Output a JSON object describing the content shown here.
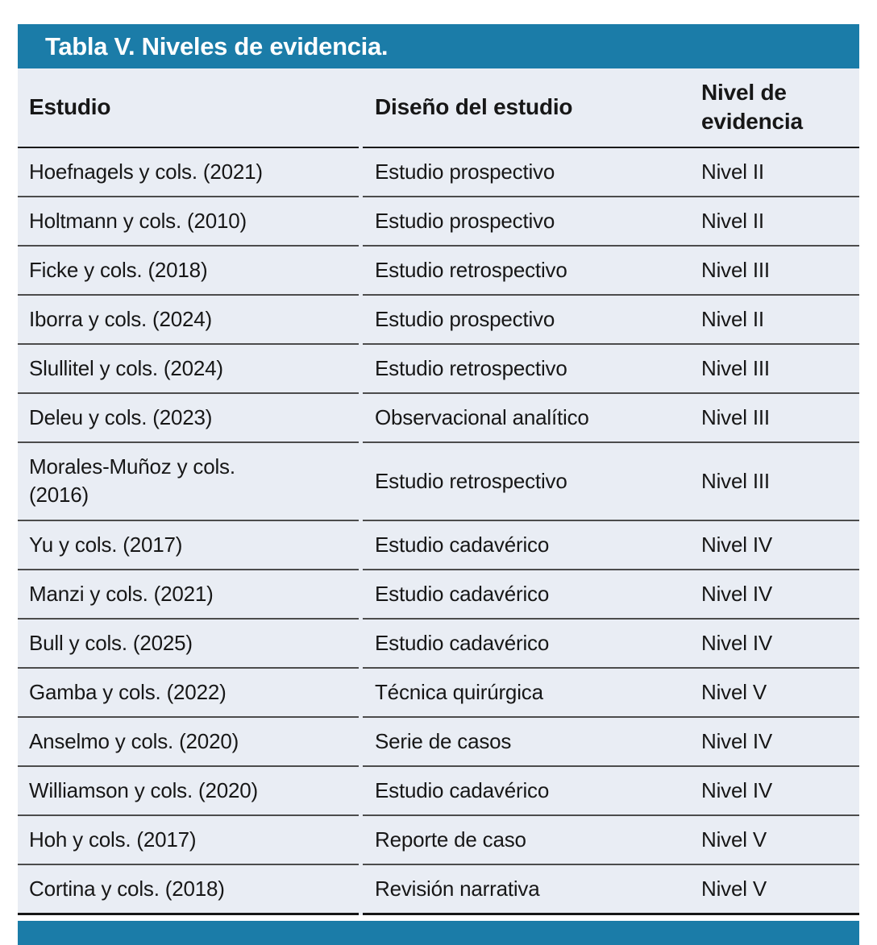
{
  "colors": {
    "accent_teal": "#1b7ca8",
    "table_background": "#e9edf4",
    "text": "#171717",
    "divider": "#4c4c4c"
  },
  "title_bar": {
    "title": "Tabla V. Niveles de evidencia."
  },
  "table": {
    "columns": [
      "Estudio",
      "Diseño del estudio",
      "Nivel de evidencia"
    ],
    "rows": [
      {
        "estudio": "Hoefnagels y cols. (2021)",
        "diseno": "Estudio prospectivo",
        "nivel": "Nivel II"
      },
      {
        "estudio": "Holtmann y cols. (2010)",
        "diseno": "Estudio prospectivo",
        "nivel": "Nivel II"
      },
      {
        "estudio": "Ficke y cols. (2018)",
        "diseno": "Estudio retrospectivo",
        "nivel": "Nivel III"
      },
      {
        "estudio": "Iborra y cols. (2024)",
        "diseno": "Estudio prospectivo",
        "nivel": "Nivel II"
      },
      {
        "estudio": "Slullitel y cols. (2024)",
        "diseno": "Estudio retrospectivo",
        "nivel": "Nivel III"
      },
      {
        "estudio": "Deleu y cols. (2023)",
        "diseno": "Observacional analítico",
        "nivel": "Nivel III"
      },
      {
        "estudio": "Morales-Muñoz y cols.\n(2016)",
        "diseno": "Estudio retrospectivo",
        "nivel": "Nivel III"
      },
      {
        "estudio": "Yu y cols. (2017)",
        "diseno": "Estudio cadavérico",
        "nivel": "Nivel IV"
      },
      {
        "estudio": "Manzi y cols. (2021)",
        "diseno": "Estudio cadavérico",
        "nivel": "Nivel IV"
      },
      {
        "estudio": "Bull y cols. (2025)",
        "diseno": "Estudio cadavérico",
        "nivel": "Nivel IV"
      },
      {
        "estudio": "Gamba y cols. (2022)",
        "diseno": "Técnica quirúrgica",
        "nivel": "Nivel V"
      },
      {
        "estudio": "Anselmo y cols. (2020)",
        "diseno": "Serie de casos",
        "nivel": "Nivel IV"
      },
      {
        "estudio": "Williamson y cols. (2020)",
        "diseno": "Estudio cadavérico",
        "nivel": "Nivel IV"
      },
      {
        "estudio": "Hoh y cols. (2017)",
        "diseno": "Reporte de caso",
        "nivel": "Nivel V"
      },
      {
        "estudio": "Cortina y cols. (2018)",
        "diseno": "Revisión narrativa",
        "nivel": "Nivel V"
      }
    ]
  }
}
